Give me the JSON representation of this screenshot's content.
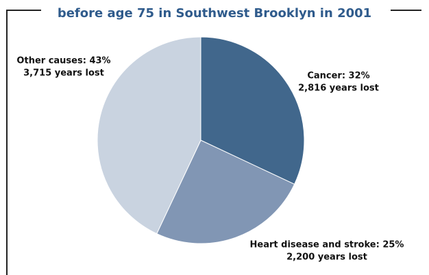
{
  "chart_data": {
    "type": "pie",
    "title": "before age 75 in Southwest Brooklyn in 2001",
    "values": [
      32,
      25,
      43
    ],
    "value_labels": [
      "Cancer: 32%",
      "Heart disease and stroke: 25%",
      "Other causes: 43%"
    ],
    "sublabels": [
      "2,816 years lost",
      "2,200 years lost",
      "3,715 years lost"
    ],
    "colors": [
      "#41678c",
      "#8196b4",
      "#c9d3e0"
    ]
  }
}
